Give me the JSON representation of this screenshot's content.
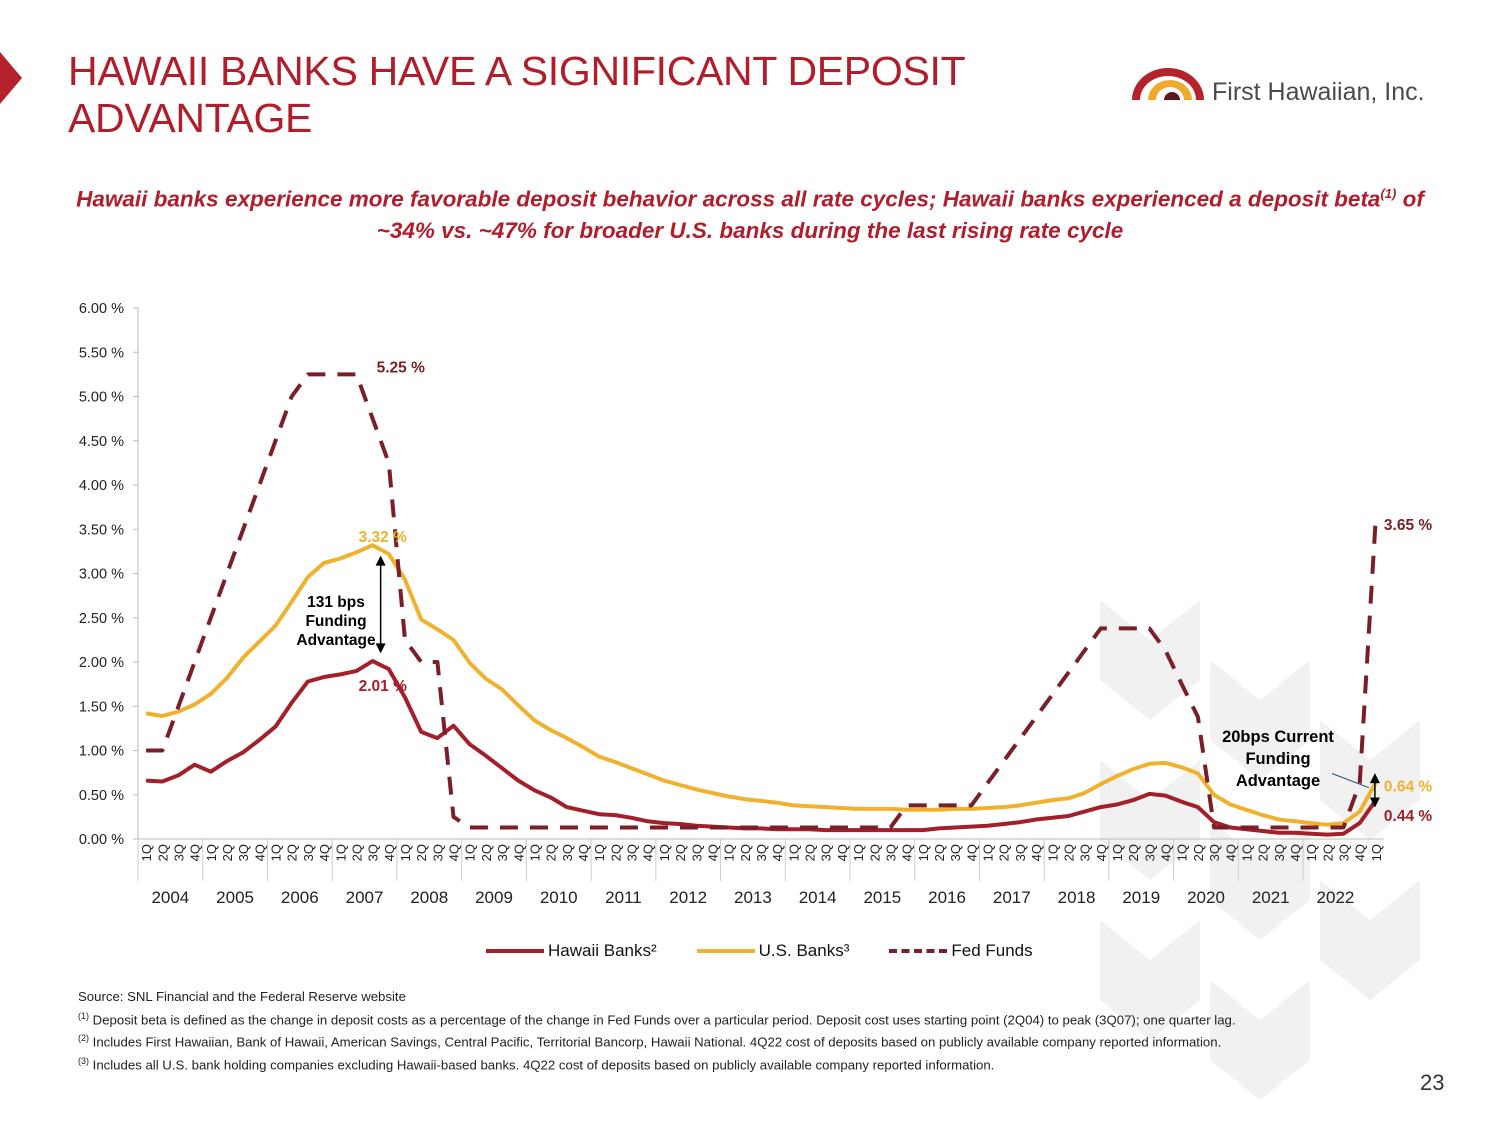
{
  "header": {
    "title_line1": "HAWAII BANKS HAVE A SIGNIFICANT DEPOSIT",
    "title_line2": "ADVANTAGE",
    "logo_text": "First Hawaiian, Inc.",
    "subtitle_part1": "Hawaii banks experience more favorable deposit behavior across all rate cycles; Hawaii banks experienced a deposit beta",
    "subtitle_sup": "(1)",
    "subtitle_part2": " of ~34% vs. ~47% for broader U.S. banks during the last rising rate cycle"
  },
  "colors": {
    "hawaii": "#a31f2a",
    "us": "#f0b12f",
    "fed": "#7a1f28",
    "brand_red": "#b01e2c"
  },
  "chart_data": {
    "type": "line",
    "title": "",
    "xlabel": "",
    "ylabel": "",
    "ylim": [
      0,
      6
    ],
    "y_ticks": [
      "0.00 %",
      "0.50 %",
      "1.00 %",
      "1.50 %",
      "2.00 %",
      "2.50 %",
      "3.00 %",
      "3.50 %",
      "4.00 %",
      "4.50 %",
      "5.00 %",
      "5.50 %",
      "6.00 %"
    ],
    "quarter_labels": [
      "1Q",
      "2Q",
      "3Q",
      "4Q"
    ],
    "years": [
      "2004",
      "2005",
      "2006",
      "2007",
      "2008",
      "2009",
      "2010",
      "2011",
      "2012",
      "2013",
      "2014",
      "2015",
      "2016",
      "2017",
      "2018",
      "2019",
      "2020",
      "2021",
      "2022"
    ],
    "legend_position": "bottom",
    "series": [
      {
        "name": "Hawaii Banks²",
        "values": [
          0.66,
          0.65,
          0.72,
          0.84,
          0.76,
          0.88,
          0.98,
          1.12,
          1.27,
          1.54,
          1.78,
          1.83,
          1.86,
          1.9,
          2.01,
          1.92,
          1.6,
          1.21,
          1.14,
          1.28,
          1.07,
          0.94,
          0.8,
          0.66,
          0.55,
          0.47,
          0.36,
          0.32,
          0.28,
          0.27,
          0.24,
          0.2,
          0.18,
          0.17,
          0.15,
          0.14,
          0.13,
          0.12,
          0.12,
          0.11,
          0.11,
          0.11,
          0.1,
          0.1,
          0.1,
          0.1,
          0.1,
          0.1,
          0.1,
          0.12,
          0.13,
          0.14,
          0.15,
          0.17,
          0.19,
          0.22,
          0.24,
          0.26,
          0.31,
          0.36,
          0.39,
          0.44,
          0.51,
          0.49,
          0.42,
          0.36,
          0.19,
          0.13,
          0.11,
          0.09,
          0.07,
          0.07,
          0.06,
          0.05,
          0.06,
          0.18,
          0.44
        ]
      },
      {
        "name": "U.S. Banks³",
        "values": [
          1.42,
          1.39,
          1.44,
          1.52,
          1.64,
          1.82,
          2.05,
          2.23,
          2.41,
          2.68,
          2.96,
          3.12,
          3.17,
          3.24,
          3.32,
          3.22,
          2.93,
          2.48,
          2.37,
          2.25,
          1.99,
          1.81,
          1.69,
          1.51,
          1.34,
          1.23,
          1.14,
          1.04,
          0.93,
          0.87,
          0.8,
          0.73,
          0.66,
          0.61,
          0.56,
          0.52,
          0.48,
          0.45,
          0.43,
          0.41,
          0.38,
          0.37,
          0.36,
          0.35,
          0.34,
          0.34,
          0.34,
          0.33,
          0.33,
          0.33,
          0.34,
          0.34,
          0.35,
          0.36,
          0.38,
          0.41,
          0.44,
          0.46,
          0.52,
          0.62,
          0.71,
          0.79,
          0.85,
          0.86,
          0.81,
          0.74,
          0.5,
          0.39,
          0.33,
          0.27,
          0.22,
          0.2,
          0.18,
          0.16,
          0.18,
          0.31,
          0.64
        ]
      },
      {
        "name": "Fed Funds",
        "values": [
          1.0,
          1.0,
          1.5,
          2.0,
          2.5,
          3.0,
          3.5,
          4.0,
          4.5,
          5.0,
          5.25,
          5.25,
          5.25,
          5.25,
          4.75,
          4.25,
          2.25,
          2.0,
          2.0,
          0.25,
          0.13,
          0.13,
          0.13,
          0.13,
          0.13,
          0.13,
          0.13,
          0.13,
          0.13,
          0.13,
          0.13,
          0.13,
          0.13,
          0.13,
          0.13,
          0.13,
          0.13,
          0.13,
          0.13,
          0.13,
          0.13,
          0.13,
          0.13,
          0.13,
          0.13,
          0.13,
          0.13,
          0.38,
          0.38,
          0.38,
          0.38,
          0.38,
          0.63,
          0.88,
          1.13,
          1.38,
          1.63,
          1.88,
          2.13,
          2.38,
          2.38,
          2.38,
          2.38,
          2.13,
          1.75,
          1.38,
          0.13,
          0.13,
          0.13,
          0.13,
          0.13,
          0.13,
          0.13,
          0.13,
          0.13,
          0.63,
          3.65
        ]
      }
    ],
    "annotations": {
      "fed_peak_label": "5.25 %",
      "us_peak_label": "3.32 %",
      "hawaii_peak_label": "2.01 %",
      "fed_end_label": "3.65 %",
      "us_end_label": "0.64 %",
      "hawaii_end_label": "0.44 %",
      "advantage_2007": "131 bps Funding Advantage",
      "advantage_2022": "20bps Current Funding Advantage"
    }
  },
  "footnotes": {
    "source": "Source: SNL Financial and the Federal Reserve website",
    "note1_sup": "(1)",
    "note1": " Deposit beta is defined as the change in deposit costs as a percentage of the change in Fed Funds over a particular period. Deposit cost uses starting point (2Q04) to peak (3Q07); one quarter lag.",
    "note2_sup": "(2)",
    "note2": " Includes First Hawaiian, Bank of Hawaii, American Savings, Central Pacific, Territorial Bancorp, Hawaii National. 4Q22 cost of deposits based on publicly available company reported information.",
    "note3_sup": "(3)",
    "note3": " Includes all U.S. bank holding companies excluding Hawaii-based banks. 4Q22 cost of deposits based on publicly available company reported information."
  },
  "page_number": "23"
}
